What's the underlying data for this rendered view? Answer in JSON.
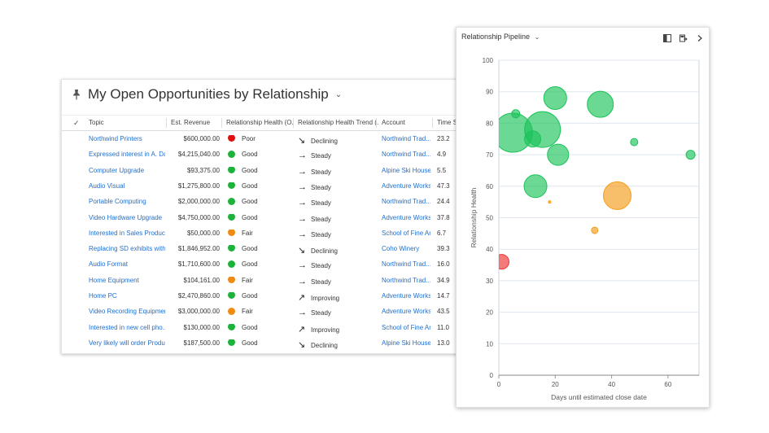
{
  "grid": {
    "title": "My Open Opportunities by Relationship",
    "columns": [
      {
        "label": "Topic"
      },
      {
        "label": "Est. Revenue"
      },
      {
        "label": "Relationship Health (O..."
      },
      {
        "label": "Relationship Health Trend (..."
      },
      {
        "label": "Account"
      },
      {
        "label": "Time Sp"
      }
    ],
    "rows": [
      {
        "topic": "Northwind Printers",
        "revenue": "$600,000.00",
        "health": "Poor",
        "health_color": "#e01010",
        "trend": "Declining",
        "trend_icon": "arrow-down-right",
        "account": "Northwind Trad...",
        "time": "23.2"
      },
      {
        "topic": "Expressed interest in A. Da...",
        "revenue": "$4,215,040.00",
        "health": "Good",
        "health_color": "#1bb33a",
        "trend": "Steady",
        "trend_icon": "arrow-right",
        "account": "Northwind Trad...",
        "time": "4.9"
      },
      {
        "topic": "Computer Upgrade",
        "revenue": "$93,375.00",
        "health": "Good",
        "health_color": "#1bb33a",
        "trend": "Steady",
        "trend_icon": "arrow-right",
        "account": "Alpine Ski House",
        "time": "5.5"
      },
      {
        "topic": "Audio Visual",
        "revenue": "$1,275,800.00",
        "health": "Good",
        "health_color": "#1bb33a",
        "trend": "Steady",
        "trend_icon": "arrow-right",
        "account": "Adventure Works",
        "time": "47.3"
      },
      {
        "topic": "Portable Computing",
        "revenue": "$2,000,000.00",
        "health": "Good",
        "health_color": "#1bb33a",
        "trend": "Steady",
        "trend_icon": "arrow-right",
        "account": "Northwind Trad...",
        "time": "24.4"
      },
      {
        "topic": "Video Hardware Upgrade",
        "revenue": "$4,750,000.00",
        "health": "Good",
        "health_color": "#1bb33a",
        "trend": "Steady",
        "trend_icon": "arrow-right",
        "account": "Adventure Works",
        "time": "37.8"
      },
      {
        "topic": "Interested in Sales Product...",
        "revenue": "$50,000.00",
        "health": "Fair",
        "health_color": "#f08a10",
        "trend": "Steady",
        "trend_icon": "arrow-right",
        "account": "School of Fine Art",
        "time": "6.7"
      },
      {
        "topic": "Replacing SD exhibits with ...",
        "revenue": "$1,846,952.00",
        "health": "Good",
        "health_color": "#1bb33a",
        "trend": "Declining",
        "trend_icon": "arrow-down-right",
        "account": "Coho Winery",
        "time": "39.3"
      },
      {
        "topic": "Audio Format",
        "revenue": "$1,710,600.00",
        "health": "Good",
        "health_color": "#1bb33a",
        "trend": "Steady",
        "trend_icon": "arrow-right",
        "account": "Northwind Trad...",
        "time": "16.0"
      },
      {
        "topic": "Home Equipment",
        "revenue": "$104,161.00",
        "health": "Fair",
        "health_color": "#f08a10",
        "trend": "Steady",
        "trend_icon": "arrow-right",
        "account": "Northwind Trad...",
        "time": "34.9"
      },
      {
        "topic": "Home PC",
        "revenue": "$2,470,860.00",
        "health": "Good",
        "health_color": "#1bb33a",
        "trend": "Improving",
        "trend_icon": "arrow-up-right",
        "account": "Adventure Works",
        "time": "14.7"
      },
      {
        "topic": "Video Recording Equipment",
        "revenue": "$3,000,000.00",
        "health": "Fair",
        "health_color": "#f08a10",
        "trend": "Steady",
        "trend_icon": "arrow-right",
        "account": "Adventure Works",
        "time": "43.5"
      },
      {
        "topic": "Interested in new cell pho...",
        "revenue": "$130,000.00",
        "health": "Good",
        "health_color": "#1bb33a",
        "trend": "Improving",
        "trend_icon": "arrow-up-right",
        "account": "School of Fine Art",
        "time": "11.0"
      },
      {
        "topic": "Very likely will order Produ...",
        "revenue": "$187,500.00",
        "health": "Good",
        "health_color": "#1bb33a",
        "trend": "Declining",
        "trend_icon": "arrow-down-right",
        "account": "Alpine Ski House",
        "time": "13.0"
      }
    ]
  },
  "chart_panel": {
    "title": "Relationship Pipeline",
    "icons": [
      "expand-icon",
      "export-icon",
      "chevron-right-icon"
    ]
  },
  "chart_data": {
    "type": "scatter",
    "title": "",
    "xlabel": "Days until estimated close date",
    "ylabel": "Relationship Health",
    "xlim": [
      0,
      71
    ],
    "ylim": [
      0,
      100
    ],
    "xticks": [
      0,
      20,
      40,
      60
    ],
    "yticks": [
      0,
      10,
      20,
      30,
      40,
      50,
      60,
      70,
      80,
      90,
      100
    ],
    "grid": true,
    "points": [
      {
        "x": 5,
        "y": 77,
        "r": 24,
        "color": "#1bc35a"
      },
      {
        "x": 15.5,
        "y": 78,
        "r": 22,
        "color": "#1bc35a"
      },
      {
        "x": 20,
        "y": 88,
        "r": 14,
        "color": "#1bc35a"
      },
      {
        "x": 36,
        "y": 86,
        "r": 16,
        "color": "#1bc35a"
      },
      {
        "x": 21,
        "y": 70,
        "r": 13,
        "color": "#1bc35a"
      },
      {
        "x": 13,
        "y": 60,
        "r": 14,
        "color": "#1bc35a"
      },
      {
        "x": 12,
        "y": 75,
        "r": 10,
        "color": "#1bc35a"
      },
      {
        "x": 6,
        "y": 83,
        "r": 5,
        "color": "#1bc35a"
      },
      {
        "x": 48,
        "y": 74,
        "r": 4.5,
        "color": "#1bc35a"
      },
      {
        "x": 68,
        "y": 70,
        "r": 5.5,
        "color": "#1bc35a"
      },
      {
        "x": 42,
        "y": 57,
        "r": 17,
        "color": "#f59c1a"
      },
      {
        "x": 34,
        "y": 46,
        "r": 4,
        "color": "#f59c1a"
      },
      {
        "x": 18,
        "y": 55,
        "r": 1.5,
        "color": "#f59c1a"
      },
      {
        "x": 1,
        "y": 36,
        "r": 9,
        "color": "#ee3333"
      }
    ]
  }
}
